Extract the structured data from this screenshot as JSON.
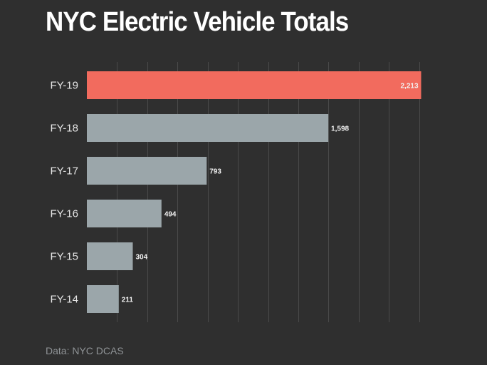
{
  "header": {
    "title": "NYC Electric Vehicle Totals"
  },
  "footer": {
    "source": "Data: NYC DCAS"
  },
  "colors": {
    "background": "#2f2f2f",
    "highlight": "#f26b5e",
    "bar": "#9ba6aa",
    "gridline": "#4a4a4a"
  },
  "chart_data": {
    "type": "bar",
    "orientation": "horizontal",
    "title": "NYC Electric Vehicle Totals",
    "xlabel": "",
    "ylabel": "",
    "categories": [
      "FY-19",
      "FY-18",
      "FY-17",
      "FY-16",
      "FY-15",
      "FY-14"
    ],
    "values": [
      2213,
      1598,
      793,
      494,
      304,
      211
    ],
    "value_labels": [
      "2,213",
      "1,598",
      "793",
      "494",
      "304",
      "211"
    ],
    "highlight_category": "FY-19",
    "xlim": [
      0,
      2300
    ],
    "grid": true,
    "gridline_step": 200,
    "legend": "none"
  }
}
